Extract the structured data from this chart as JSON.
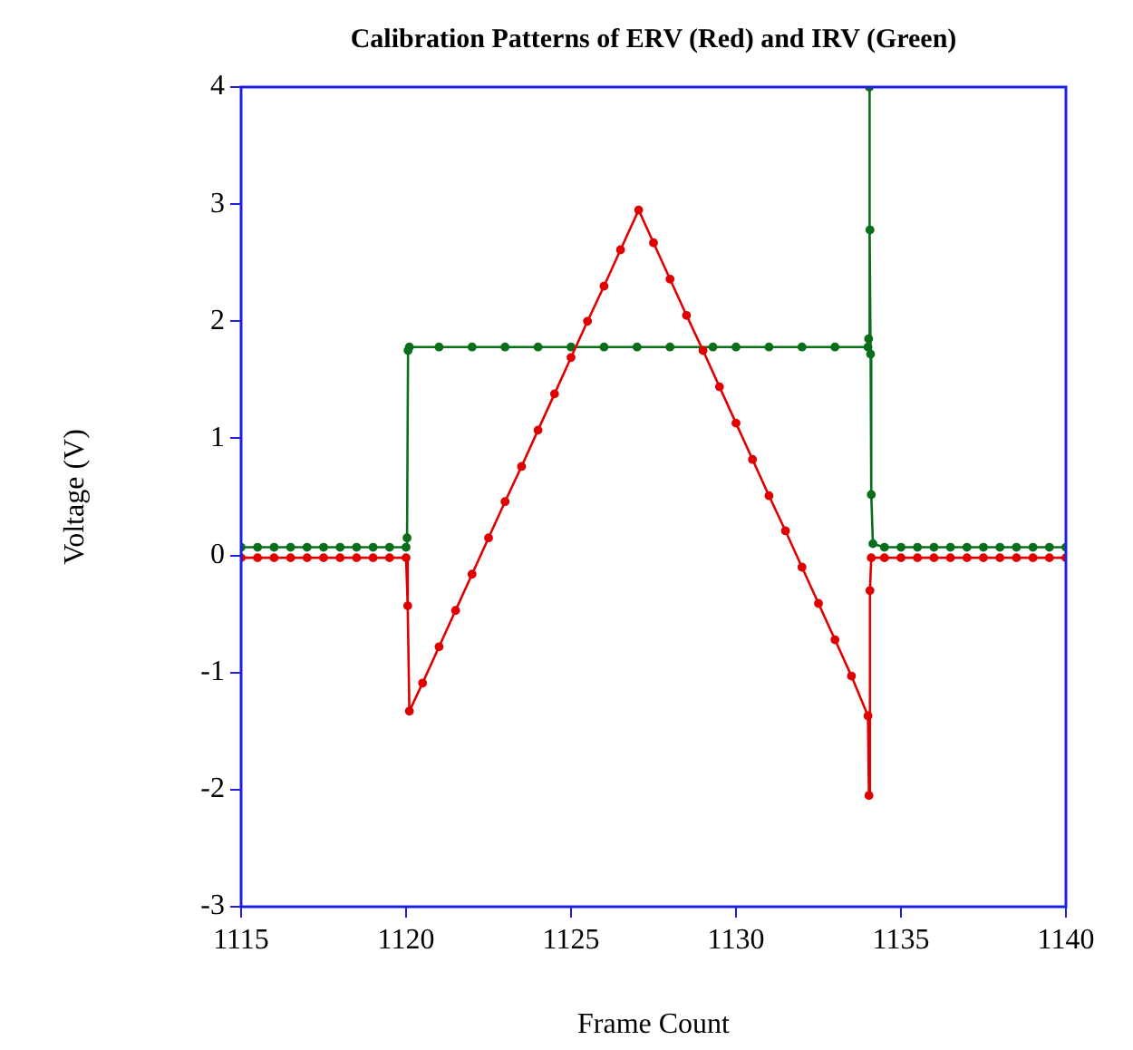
{
  "chart_data": {
    "type": "line",
    "title": "Calibration Patterns of ERV (Red) and IRV (Green)",
    "xlabel": "Frame Count",
    "ylabel": "Voltage (V)",
    "xlim": [
      1115,
      1140
    ],
    "ylim": [
      -3,
      4
    ],
    "xticks": [
      1115,
      1120,
      1125,
      1130,
      1135,
      1140
    ],
    "yticks": [
      -3,
      -2,
      -1,
      0,
      1,
      2,
      3,
      4
    ],
    "grid": false,
    "legend": false,
    "marker": "circle",
    "line_style": "solid",
    "series": [
      {
        "color": "#e00000",
        "x": [
          1115,
          1115.5,
          1116,
          1116.5,
          1117,
          1117.5,
          1118,
          1118.5,
          1119,
          1119.5,
          1120,
          1120.05,
          1120.1,
          1120.5,
          1121,
          1121.5,
          1122,
          1122.5,
          1123,
          1123.5,
          1124,
          1124.5,
          1125,
          1125.5,
          1126,
          1126.5,
          1127.05,
          1127.5,
          1128,
          1128.5,
          1129,
          1129.5,
          1130,
          1130.5,
          1131,
          1131.5,
          1132,
          1132.5,
          1133,
          1133.5,
          1134,
          1134.03,
          1134.06,
          1134.1,
          1134.5,
          1135,
          1135.5,
          1136,
          1136.5,
          1137,
          1137.5,
          1138,
          1138.5,
          1139,
          1139.5,
          1140
        ],
        "values": [
          -0.02,
          -0.02,
          -0.02,
          -0.02,
          -0.02,
          -0.02,
          -0.02,
          -0.02,
          -0.02,
          -0.02,
          -0.02,
          -0.43,
          -1.33,
          -1.09,
          -0.78,
          -0.47,
          -0.16,
          0.15,
          0.46,
          0.76,
          1.07,
          1.38,
          1.69,
          2.0,
          2.3,
          2.61,
          2.95,
          2.67,
          2.36,
          2.05,
          1.75,
          1.44,
          1.13,
          0.82,
          0.51,
          0.21,
          -0.1,
          -0.41,
          -0.72,
          -1.03,
          -1.37,
          -2.05,
          -0.3,
          -0.02,
          -0.02,
          -0.02,
          -0.02,
          -0.02,
          -0.02,
          -0.02,
          -0.02,
          -0.02,
          -0.02,
          -0.02,
          -0.02,
          -0.02
        ]
      },
      {
        "color": "#0a6e1a",
        "x": [
          1115,
          1115.5,
          1116,
          1116.5,
          1117,
          1117.5,
          1118,
          1118.5,
          1119,
          1119.5,
          1120,
          1120.03,
          1120.06,
          1120.1,
          1121,
          1122,
          1123,
          1124,
          1125,
          1126,
          1127,
          1128,
          1129.3,
          1130,
          1131,
          1132,
          1133,
          1134,
          1134.02,
          1134.04,
          1134.06,
          1134.08,
          1134.1,
          1134.15,
          1134.5,
          1135,
          1135.5,
          1136,
          1136.5,
          1137,
          1137.5,
          1138,
          1138.5,
          1139,
          1139.5,
          1140
        ],
        "values": [
          0.07,
          0.07,
          0.07,
          0.07,
          0.07,
          0.07,
          0.07,
          0.07,
          0.07,
          0.07,
          0.07,
          0.15,
          1.75,
          1.78,
          1.78,
          1.78,
          1.78,
          1.78,
          1.78,
          1.78,
          1.78,
          1.78,
          1.78,
          1.78,
          1.78,
          1.78,
          1.78,
          1.78,
          1.85,
          4.0,
          2.78,
          1.72,
          0.52,
          0.1,
          0.07,
          0.07,
          0.07,
          0.07,
          0.07,
          0.07,
          0.07,
          0.07,
          0.07,
          0.07,
          0.07,
          0.07
        ]
      }
    ]
  }
}
